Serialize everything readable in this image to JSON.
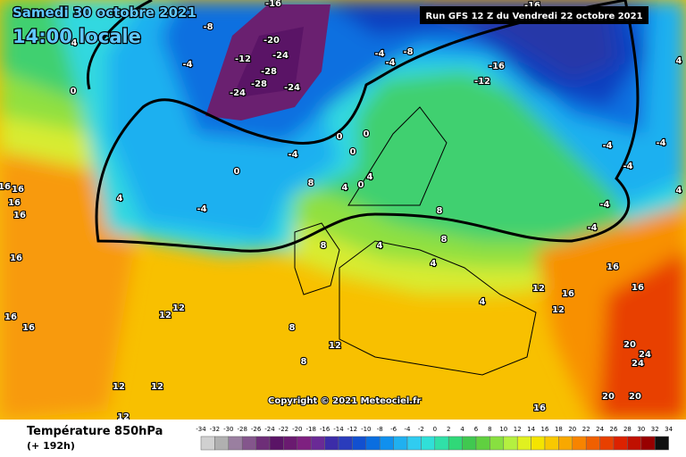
{
  "header": {
    "date": "Samedi 30 octobre 2021",
    "time": "14:00 locale",
    "run": "Run GFS 12 Z du Vendredi 22 octobre 2021"
  },
  "map": {
    "copyright": "Copyright © 2021 Meteociel.fr",
    "labels": [
      -8,
      -4,
      -12,
      -20,
      -24,
      -28,
      -24,
      -28,
      -24,
      -16,
      -16,
      -8,
      -4,
      -4,
      -16,
      -12,
      4,
      0,
      -4,
      0,
      0,
      0,
      -4,
      4,
      0,
      8,
      4,
      0,
      4,
      8,
      8,
      4,
      8,
      -4,
      -4,
      -4,
      -4,
      16,
      16,
      16,
      12,
      12,
      16,
      16,
      20,
      24,
      24,
      20,
      20,
      16,
      12,
      12,
      12,
      12,
      12,
      8,
      8,
      4,
      4,
      16,
      16,
      16,
      16,
      16,
      4,
      4,
      -4,
      12
    ]
  },
  "footer": {
    "title": "Température 850hPa",
    "lead": "(+ 192h)"
  },
  "legend": {
    "ticks": [
      -34,
      -32,
      -30,
      -28,
      -26,
      -24,
      -22,
      -20,
      -18,
      -16,
      -14,
      -12,
      -10,
      -8,
      -6,
      -4,
      -2,
      0,
      2,
      4,
      6,
      8,
      10,
      12,
      14,
      16,
      18,
      20,
      22,
      24,
      26,
      28,
      30,
      32,
      34
    ],
    "colors": [
      "#d0d0d0",
      "#b0b0b0",
      "#9a7fa0",
      "#84568c",
      "#6e2e78",
      "#5a1466",
      "#6a1a70",
      "#7e2080",
      "#6a2a96",
      "#3c2ca8",
      "#2a3cbc",
      "#1250d0",
      "#0a6ee0",
      "#1090ee",
      "#20b0f0",
      "#30ccf0",
      "#30e0d8",
      "#30e0a8",
      "#30d878",
      "#40c850",
      "#60d040",
      "#88e040",
      "#b4f040",
      "#e0f020",
      "#f4e400",
      "#f8c800",
      "#f8a800",
      "#f88400",
      "#f06000",
      "#e84000",
      "#dc2200",
      "#c01000",
      "#980000",
      "#101010"
    ]
  }
}
